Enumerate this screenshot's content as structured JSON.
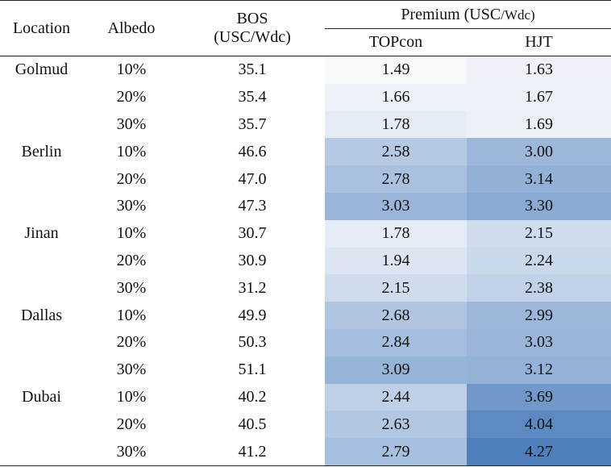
{
  "header": {
    "location": "Location",
    "albedo": "Albedo",
    "bos_line1": "BOS",
    "bos_line2": "(USC/Wdc)",
    "premium_main": "Premium (USC",
    "premium_unit": "/Wdc)",
    "topcon": "TOPcon",
    "hjt": "HJT"
  },
  "heat_scale": {
    "min": 1.49,
    "max": 4.27,
    "low_color": "#f7f9fc",
    "high_color": "#4f7fbd"
  },
  "rows": [
    {
      "location": "Golmud",
      "albedo": "10%",
      "bos": "35.1",
      "topcon": "1.49",
      "hjt": "1.63"
    },
    {
      "location": "",
      "albedo": "20%",
      "bos": "35.4",
      "topcon": "1.66",
      "hjt": "1.67"
    },
    {
      "location": "",
      "albedo": "30%",
      "bos": "35.7",
      "topcon": "1.78",
      "hjt": "1.69"
    },
    {
      "location": "Berlin",
      "albedo": "10%",
      "bos": "46.6",
      "topcon": "2.58",
      "hjt": "3.00"
    },
    {
      "location": "",
      "albedo": "20%",
      "bos": "47.0",
      "topcon": "2.78",
      "hjt": "3.14"
    },
    {
      "location": "",
      "albedo": "30%",
      "bos": "47.3",
      "topcon": "3.03",
      "hjt": "3.30"
    },
    {
      "location": "Jinan",
      "albedo": "10%",
      "bos": "30.7",
      "topcon": "1.78",
      "hjt": "2.15"
    },
    {
      "location": "",
      "albedo": "20%",
      "bos": "30.9",
      "topcon": "1.94",
      "hjt": "2.24"
    },
    {
      "location": "",
      "albedo": "30%",
      "bos": "31.2",
      "topcon": "2.15",
      "hjt": "2.38"
    },
    {
      "location": "Dallas",
      "albedo": "10%",
      "bos": "49.9",
      "topcon": "2.68",
      "hjt": "2.99"
    },
    {
      "location": "",
      "albedo": "20%",
      "bos": "50.3",
      "topcon": "2.84",
      "hjt": "3.03"
    },
    {
      "location": "",
      "albedo": "30%",
      "bos": "51.1",
      "topcon": "3.09",
      "hjt": "3.12"
    },
    {
      "location": "Dubai",
      "albedo": "10%",
      "bos": "40.2",
      "topcon": "2.44",
      "hjt": "3.69"
    },
    {
      "location": "",
      "albedo": "20%",
      "bos": "40.5",
      "topcon": "2.63",
      "hjt": "4.04"
    },
    {
      "location": "",
      "albedo": "30%",
      "bos": "41.2",
      "topcon": "2.79",
      "hjt": "4.27"
    }
  ]
}
